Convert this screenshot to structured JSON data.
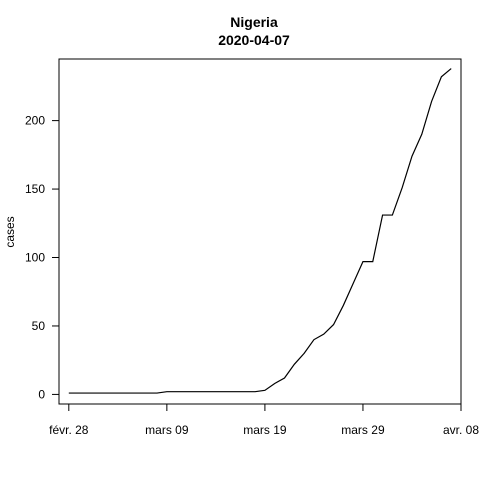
{
  "chart_data": {
    "type": "line",
    "title": "Nigeria",
    "subtitle": "2020-04-07",
    "xlabel": "",
    "ylabel": "cases",
    "x_range": [
      "2020-02-27",
      "2020-04-08"
    ],
    "ylim": [
      -7,
      245
    ],
    "grid": false,
    "x_ticks": [
      {
        "date": "2020-02-28",
        "label": "févr. 28"
      },
      {
        "date": "2020-03-09",
        "label": "mars 09"
      },
      {
        "date": "2020-03-19",
        "label": "mars 19"
      },
      {
        "date": "2020-03-29",
        "label": "mars 29"
      },
      {
        "date": "2020-04-08",
        "label": "avr. 08"
      }
    ],
    "y_ticks": [
      0,
      50,
      100,
      150,
      200
    ],
    "series": [
      {
        "name": "",
        "color": "#000000",
        "x": [
          "2020-02-28",
          "2020-02-29",
          "2020-03-01",
          "2020-03-02",
          "2020-03-03",
          "2020-03-04",
          "2020-03-05",
          "2020-03-06",
          "2020-03-07",
          "2020-03-08",
          "2020-03-09",
          "2020-03-10",
          "2020-03-11",
          "2020-03-12",
          "2020-03-13",
          "2020-03-14",
          "2020-03-15",
          "2020-03-16",
          "2020-03-17",
          "2020-03-18",
          "2020-03-19",
          "2020-03-20",
          "2020-03-21",
          "2020-03-22",
          "2020-03-23",
          "2020-03-24",
          "2020-03-25",
          "2020-03-26",
          "2020-03-27",
          "2020-03-28",
          "2020-03-29",
          "2020-03-30",
          "2020-03-31",
          "2020-04-01",
          "2020-04-02",
          "2020-04-03",
          "2020-04-04",
          "2020-04-05",
          "2020-04-06",
          "2020-04-07"
        ],
        "values": [
          1,
          1,
          1,
          1,
          1,
          1,
          1,
          1,
          1,
          1,
          2,
          2,
          2,
          2,
          2,
          2,
          2,
          2,
          2,
          2,
          3,
          8,
          12,
          22,
          30,
          40,
          44,
          51,
          65,
          81,
          97,
          97,
          131,
          131,
          151,
          174,
          190,
          214,
          232,
          238
        ]
      }
    ]
  }
}
